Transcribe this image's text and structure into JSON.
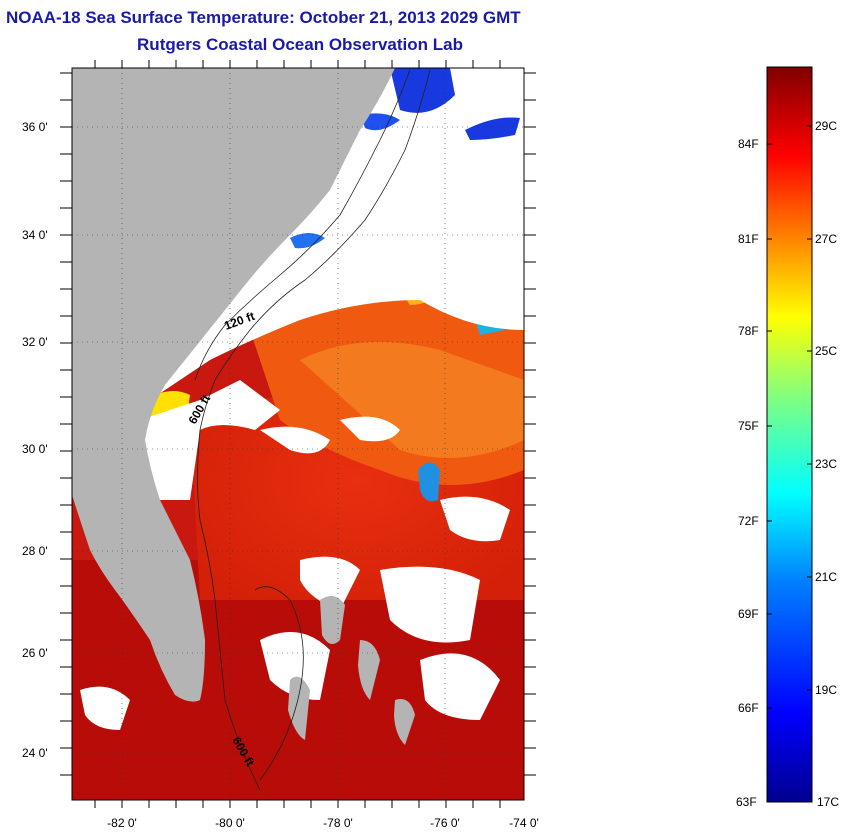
{
  "header": {
    "title": "NOAA-18 Sea Surface Temperature:  October 21, 2013 2029 GMT",
    "subtitle": "Rutgers Coastal Ocean Observation Lab"
  },
  "map": {
    "lat_ticks": [
      "36 0'",
      "34 0'",
      "32 0'",
      "30 0'",
      "28 0'",
      "26 0'",
      "24 0'"
    ],
    "lon_ticks": [
      "-82 0'",
      "-80 0'",
      "-78 0'",
      "-76 0'",
      "-74 0'"
    ],
    "contour_labels": [
      "120 ft",
      "600 ft",
      "600 ft"
    ],
    "land_color": "#b4b4b4",
    "cloud_color": "#ffffff"
  },
  "colorbar": {
    "fahrenheit": [
      "84F",
      "81F",
      "78F",
      "75F",
      "72F",
      "69F",
      "66F",
      "63F"
    ],
    "celsius": [
      "29C",
      "27C",
      "25C",
      "23C",
      "21C",
      "19C",
      "17C"
    ],
    "colormap": [
      "#00008f",
      "#0000ff",
      "#0080ff",
      "#00ffff",
      "#80ff80",
      "#ffff00",
      "#ff8000",
      "#ff0000",
      "#800000"
    ]
  }
}
